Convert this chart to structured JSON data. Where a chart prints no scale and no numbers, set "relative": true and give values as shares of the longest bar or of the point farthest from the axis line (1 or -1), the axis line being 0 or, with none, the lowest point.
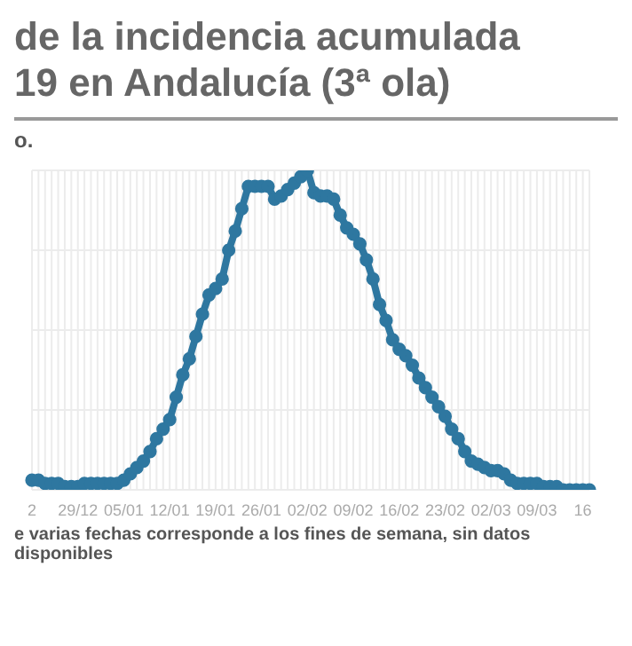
{
  "chart_data": {
    "type": "line",
    "title": "de la incidencia acumulada\n19 en Andalucía (3ª ola)",
    "subtitle": "o.",
    "annotations": [
      "e varias fechas corresponde a los fines de semana, sin datos disponibles"
    ],
    "relative": true,
    "categories": [
      "2",
      null,
      null,
      null,
      null,
      null,
      null,
      "29/12",
      null,
      null,
      null,
      null,
      null,
      null,
      "05/01",
      null,
      null,
      null,
      null,
      null,
      null,
      "12/01",
      null,
      null,
      null,
      null,
      null,
      null,
      "19/01",
      null,
      null,
      null,
      null,
      null,
      null,
      "26/01",
      null,
      null,
      null,
      null,
      null,
      null,
      "02/02",
      null,
      null,
      null,
      null,
      null,
      null,
      "09/02",
      null,
      null,
      null,
      null,
      null,
      null,
      "16/02",
      null,
      null,
      null,
      null,
      null,
      null,
      "23/02",
      null,
      null,
      null,
      null,
      null,
      null,
      "02/03",
      null,
      null,
      null,
      null,
      null,
      null,
      "09/03",
      null,
      null,
      null,
      null,
      null,
      null,
      "16",
      null
    ],
    "series": [
      {
        "color": "#2e77a0",
        "values": [
          0.03,
          0.03,
          0.02,
          0.02,
          0.02,
          0.01,
          0.01,
          0.01,
          0.02,
          0.02,
          0.02,
          0.02,
          0.02,
          0.02,
          0.03,
          0.05,
          0.07,
          0.09,
          0.12,
          0.16,
          0.19,
          0.22,
          0.29,
          0.36,
          0.41,
          0.48,
          0.55,
          0.61,
          0.63,
          0.66,
          0.75,
          0.81,
          0.88,
          0.95,
          0.95,
          0.95,
          0.95,
          0.91,
          0.92,
          0.94,
          0.96,
          0.98,
          1,
          0.93,
          0.92,
          0.92,
          0.91,
          0.86,
          0.82,
          0.8,
          0.77,
          0.72,
          0.66,
          0.58,
          0.53,
          0.47,
          0.44,
          0.42,
          0.39,
          0.35,
          0.32,
          0.29,
          0.26,
          0.23,
          0.19,
          0.16,
          0.12,
          0.09,
          0.08,
          0.07,
          0.06,
          0.06,
          0.05,
          0.03,
          0.02,
          0.02,
          0.02,
          0.02,
          0.01,
          0.01,
          0.01,
          0,
          0,
          0,
          0,
          0
        ]
      }
    ],
    "grid": true,
    "marker": "circle",
    "line_style": "solid"
  }
}
